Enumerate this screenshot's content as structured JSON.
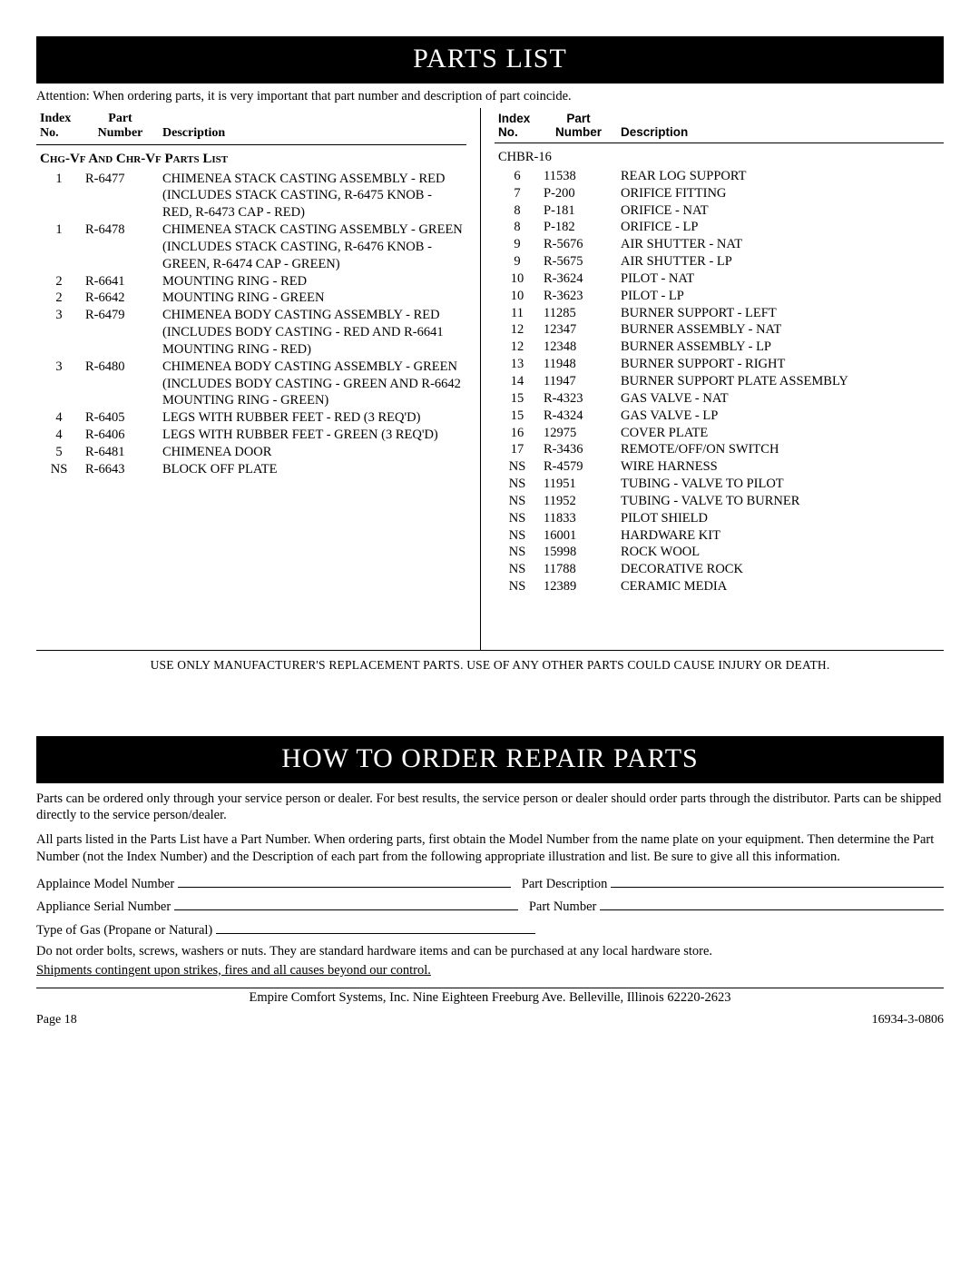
{
  "title1": "PARTS LIST",
  "attention": "Attention: When ordering parts, it is very important that part number and description of part coincide.",
  "headers": {
    "idx1": "Index",
    "idx2": "No.",
    "part1": "Part",
    "part2": "Number",
    "desc": "Description"
  },
  "leftSection": "Chg-Vf And Chr-Vf Parts List",
  "leftRows": [
    {
      "i": "1",
      "p": "R-6477",
      "d": "CHIMENEA STACK CASTING ASSEMBLY - RED (INCLUDES STACK CASTING, R-6475 KNOB - RED, R-6473 CAP - RED)"
    },
    {
      "i": "1",
      "p": "R-6478",
      "d": "CHIMENEA STACK CASTING ASSEMBLY - GREEN (INCLUDES STACK CASTING, R-6476 KNOB - GREEN, R-6474 CAP - GREEN)"
    },
    {
      "i": "2",
      "p": "R-6641",
      "d": "MOUNTING RING - RED"
    },
    {
      "i": "2",
      "p": "R-6642",
      "d": "MOUNTING RING - GREEN"
    },
    {
      "i": "3",
      "p": "R-6479",
      "d": "CHIMENEA BODY CASTING ASSEMBLY - RED (INCLUDES BODY CASTING - RED AND R-6641 MOUNTING RING - RED)"
    },
    {
      "i": "3",
      "p": "R-6480",
      "d": "CHIMENEA BODY CASTING ASSEMBLY - GREEN (INCLUDES BODY CASTING - GREEN AND R-6642 MOUNTING RING - GREEN)"
    },
    {
      "i": "4",
      "p": "R-6405",
      "d": "LEGS WITH RUBBER FEET - RED (3 REQ'D)"
    },
    {
      "i": "4",
      "p": "R-6406",
      "d": "LEGS WITH RUBBER FEET - GREEN (3 REQ'D)"
    },
    {
      "i": "5",
      "p": "R-6481",
      "d": "CHIMENEA DOOR"
    },
    {
      "i": "NS",
      "p": "R-6643",
      "d": "BLOCK OFF PLATE"
    }
  ],
  "rightSection": "CHBR-16",
  "rightRows": [
    {
      "i": "6",
      "p": "11538",
      "d": "REAR LOG SUPPORT"
    },
    {
      "i": "7",
      "p": "P-200",
      "d": "ORIFICE FITTING"
    },
    {
      "i": "8",
      "p": "P-181",
      "d": "ORIFICE - NAT"
    },
    {
      "i": "8",
      "p": "P-182",
      "d": "ORIFICE - LP"
    },
    {
      "i": "9",
      "p": "R-5676",
      "d": "AIR SHUTTER - NAT"
    },
    {
      "i": "9",
      "p": "R-5675",
      "d": "AIR SHUTTER - LP"
    },
    {
      "i": "10",
      "p": "R-3624",
      "d": "PILOT - NAT"
    },
    {
      "i": "10",
      "p": "R-3623",
      "d": "PILOT - LP"
    },
    {
      "i": "11",
      "p": "11285",
      "d": "BURNER SUPPORT - LEFT"
    },
    {
      "i": "12",
      "p": "12347",
      "d": "BURNER ASSEMBLY - NAT"
    },
    {
      "i": "12",
      "p": "12348",
      "d": "BURNER ASSEMBLY - LP"
    },
    {
      "i": "13",
      "p": "11948",
      "d": "BURNER SUPPORT - RIGHT"
    },
    {
      "i": "14",
      "p": "11947",
      "d": "BURNER SUPPORT PLATE ASSEMBLY"
    },
    {
      "i": "15",
      "p": "R-4323",
      "d": "GAS VALVE - NAT"
    },
    {
      "i": "15",
      "p": "R-4324",
      "d": "GAS VALVE - LP"
    },
    {
      "i": "16",
      "p": "12975",
      "d": "COVER PLATE"
    },
    {
      "i": "17",
      "p": "R-3436",
      "d": "REMOTE/OFF/ON SWITCH"
    },
    {
      "i": "NS",
      "p": "R-4579",
      "d": "WIRE HARNESS"
    },
    {
      "i": "NS",
      "p": "11951",
      "d": "TUBING - VALVE TO PILOT"
    },
    {
      "i": "NS",
      "p": "11952",
      "d": "TUBING - VALVE TO BURNER"
    },
    {
      "i": "NS",
      "p": "11833",
      "d": "PILOT SHIELD"
    },
    {
      "i": "NS",
      "p": "16001",
      "d": "HARDWARE KIT"
    },
    {
      "i": "NS",
      "p": "15998",
      "d": "ROCK WOOL"
    },
    {
      "i": "NS",
      "p": "11788",
      "d": "DECORATIVE ROCK"
    },
    {
      "i": "NS",
      "p": "12389",
      "d": "CERAMIC MEDIA"
    }
  ],
  "warning": "USE ONLY MANUFACTURER'S REPLACEMENT PARTS. USE OF ANY OTHER PARTS COULD CAUSE INJURY OR DEATH.",
  "title2": "HOW TO ORDER REPAIR PARTS",
  "orderP1": "Parts can be ordered only through your service person or dealer. For best results, the service person or dealer should order parts through the distributor. Parts can be shipped directly to the service person/dealer.",
  "orderP2": "All parts listed in the Parts List have a Part Number. When ordering parts, first obtain the Model Number from the name plate on your equipment. Then determine the Part Number (not the Index Number) and the Description of each part from the following appropriate illustration and list. Be sure to give all this information.",
  "blanks": {
    "model": "Applaince Model Number",
    "partDesc": "Part Description",
    "serial": "Appliance Serial Number",
    "partNum": "Part Number",
    "gas": "Type of Gas (Propane or Natural)"
  },
  "note1": "Do not order bolts, screws, washers or nuts. They are standard hardware items and can be purchased at any local hardware store.",
  "note2": "Shipments contingent upon strikes, fires and all causes beyond our control.",
  "address": "Empire Comfort Systems, Inc. Nine Eighteen Freeburg Ave. Belleville, Illinois 62220-2623",
  "pageLabel": "Page 18",
  "docNum": "16934-3-0806"
}
